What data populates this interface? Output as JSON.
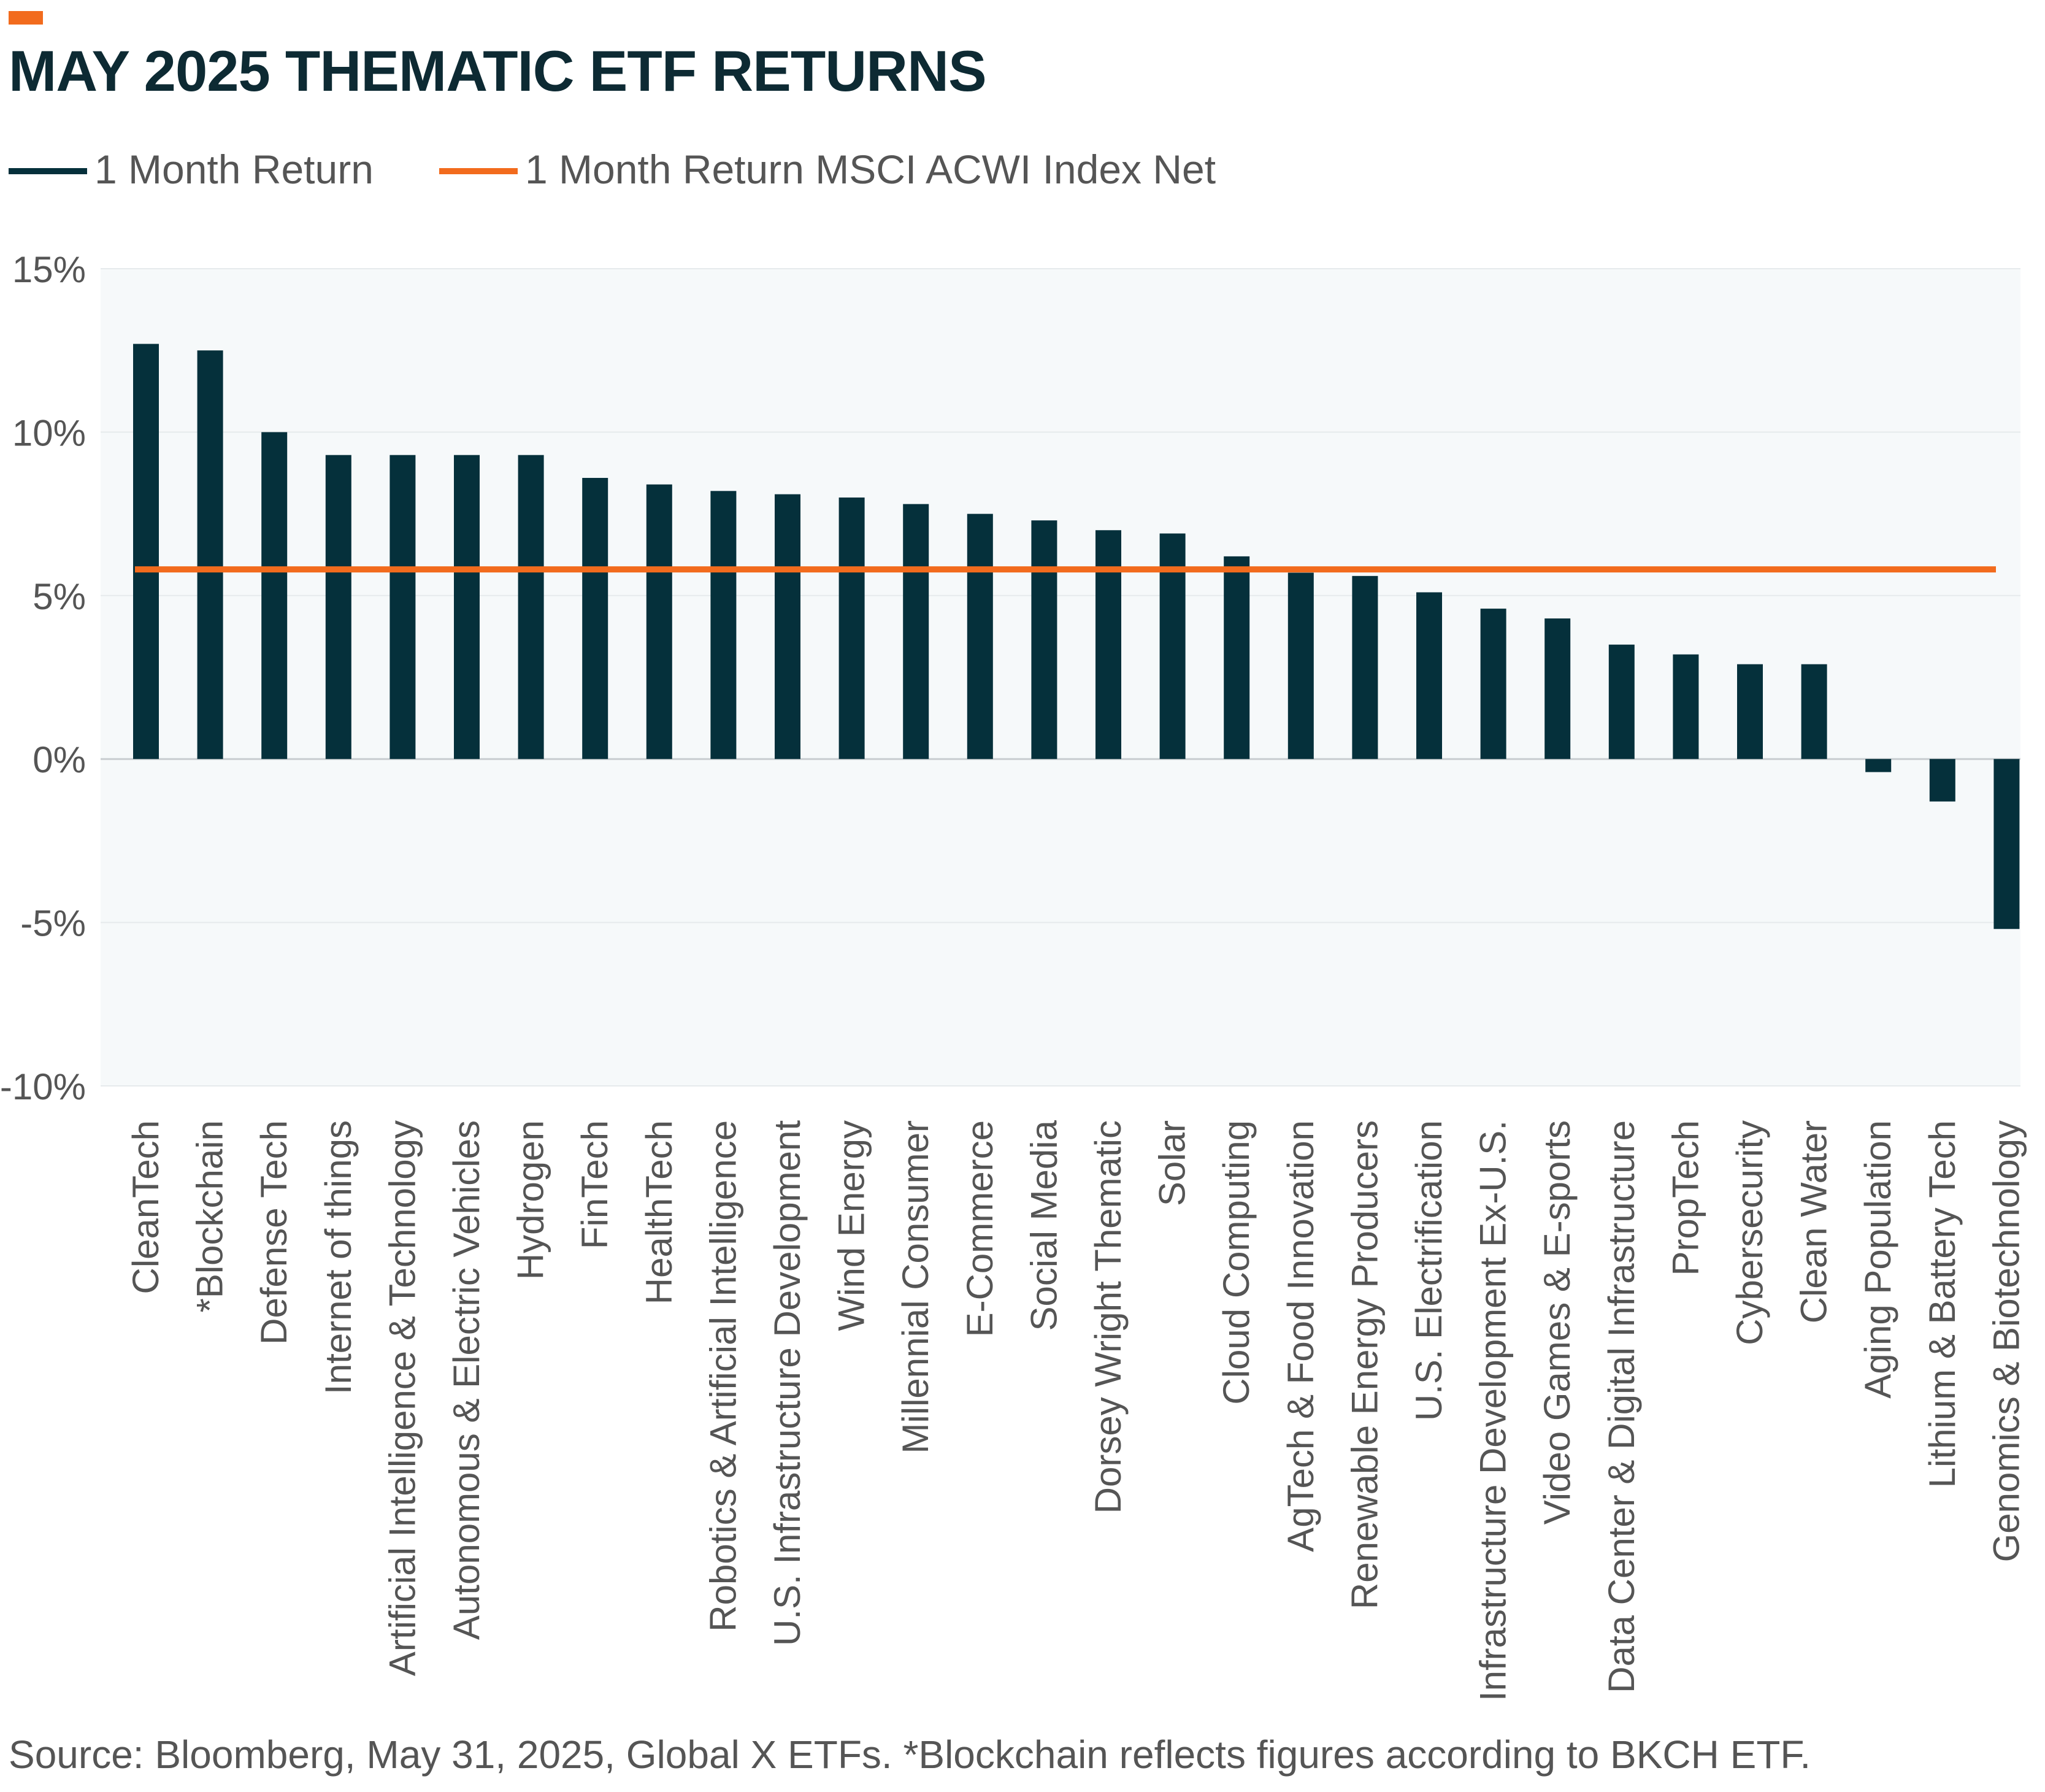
{
  "title": "MAY 2025 THEMATIC ETF RETURNS",
  "legend": [
    {
      "label": "1 Month Return",
      "color": "#05303b"
    },
    {
      "label": "1 Month Return MSCI ACWI Index Net",
      "color": "#f26b1d"
    }
  ],
  "source": "Source: Bloomberg, May 31, 2025, Global X ETFs. *Blockchain reflects figures according to BKCH ETF.",
  "chart_data": {
    "type": "bar",
    "title": "MAY 2025 THEMATIC ETF RETURNS",
    "xlabel": "",
    "ylabel": "",
    "ylim": [
      -10,
      15
    ],
    "yticks": [
      15,
      10,
      5,
      0,
      -5,
      -10
    ],
    "ytick_labels": [
      "15%",
      "10%",
      "5%",
      "0%",
      "-5%",
      "-10%"
    ],
    "grid": true,
    "legend_position": "top-left",
    "categories": [
      "CleanTech",
      "*Blockchain",
      "Defense Tech",
      "Internet of things",
      "Artificial Intelligence & Technology",
      "Autonomous & Electric Vehicles",
      "Hydrogen",
      "FinTech",
      "HealthTech",
      "Robotics & Artificial Intelligence",
      "U.S. Infrastructure Development",
      "Wind Energy",
      "Millennial Consumer",
      "E-Commerce",
      "Social Media",
      "Dorsey Wright Thematic",
      "Solar",
      "Cloud Computing",
      "AgTech & Food Innovation",
      "Renewable Energy Producers",
      "U.S. Electrification",
      "Infrastructure Development Ex-U.S.",
      "Video Games & E-sports",
      "Data Center & Digital Infrastructure",
      "PropTech",
      "Cybersecurity",
      "Clean Water",
      "Aging Population",
      "Lithium & Battery Tech",
      "Genomics & Biotechnology"
    ],
    "series": [
      {
        "name": "1 Month Return",
        "color": "#05303b",
        "values": [
          12.7,
          12.5,
          10.0,
          9.3,
          9.3,
          9.3,
          9.3,
          8.6,
          8.4,
          8.2,
          8.1,
          8.0,
          7.8,
          7.5,
          7.3,
          7.0,
          6.9,
          6.2,
          5.7,
          5.6,
          5.1,
          4.6,
          4.3,
          3.5,
          3.2,
          2.9,
          2.9,
          -0.4,
          -1.3,
          -5.2
        ]
      },
      {
        "name": "1 Month Return MSCI ACWI Index Net",
        "color": "#f26b1d",
        "type": "line",
        "value": 5.8
      }
    ]
  }
}
